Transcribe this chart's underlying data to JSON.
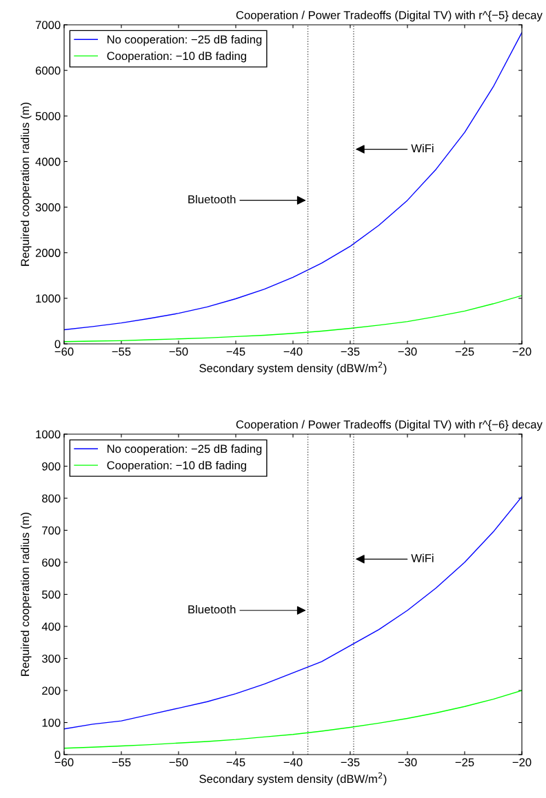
{
  "chart_data": [
    {
      "type": "line",
      "title": "Cooperation / Power Tradeoffs (Digital TV) with r^{−5} decay",
      "xlabel": "Secondary system density (dBW/m$^{2}$)",
      "ylabel": "Required cooperation radius (m)",
      "x": [
        -60,
        -57.5,
        -55,
        -52.5,
        -50,
        -47.5,
        -45,
        -42.5,
        -40,
        -37.5,
        -35,
        -32.5,
        -30,
        -27.5,
        -25,
        -22.5,
        -20
      ],
      "series": [
        {
          "name": "No cooperation: −25 dB fading",
          "color": "#0000ff",
          "values": [
            310,
            380,
            460,
            560,
            670,
            810,
            990,
            1200,
            1460,
            1770,
            2140,
            2600,
            3150,
            3830,
            4640,
            5640,
            6830
          ]
        },
        {
          "name": "Cooperation: −10 dB fading",
          "color": "#00ff00",
          "values": [
            50,
            60,
            70,
            90,
            110,
            130,
            160,
            190,
            230,
            280,
            340,
            410,
            490,
            600,
            720,
            880,
            1060
          ]
        }
      ],
      "xlim": [
        -60,
        -20
      ],
      "ylim": [
        0,
        7000
      ],
      "xticks": [
        {
          "value": -60,
          "label": "−60"
        },
        {
          "value": -55,
          "label": "−55"
        },
        {
          "value": -50,
          "label": "−50"
        },
        {
          "value": -45,
          "label": "−45"
        },
        {
          "value": -40,
          "label": "−40"
        },
        {
          "value": -35,
          "label": "−35"
        },
        {
          "value": -30,
          "label": "−30"
        },
        {
          "value": -25,
          "label": "−25"
        },
        {
          "value": -20,
          "label": "−20"
        }
      ],
      "yticks": [
        0,
        1000,
        2000,
        3000,
        4000,
        5000,
        6000,
        7000
      ],
      "ref_lines": [
        {
          "axis": "x",
          "value": -38.7,
          "color": "#555555",
          "line_style": "dotted"
        },
        {
          "axis": "x",
          "value": -34.7,
          "color": "#555555",
          "line_style": "dotted"
        }
      ],
      "annotations": [
        "Bluetooth",
        "WiFi"
      ],
      "legend": "top left",
      "grid": false,
      "line_style": "solid",
      "marker": "none"
    },
    {
      "type": "line",
      "title": "Cooperation / Power Tradeoffs (Digital TV) with r^{−6} decay",
      "xlabel": "Secondary system density (dBW/m$^{2}$)",
      "ylabel": "Required cooperation radius (m)",
      "x": [
        -60,
        -57.5,
        -55,
        -52.5,
        -50,
        -47.5,
        -45,
        -42.5,
        -40,
        -37.5,
        -35,
        -32.5,
        -30,
        -27.5,
        -25,
        -22.5,
        -20
      ],
      "series": [
        {
          "name": "No cooperation: −25 dB fading",
          "color": "#0000ff",
          "values": [
            80,
            95,
            105,
            125,
            145,
            165,
            190,
            220,
            255,
            290,
            340,
            390,
            450,
            520,
            600,
            695,
            805
          ]
        },
        {
          "name": "Cooperation: −10 dB fading",
          "color": "#00ff00",
          "values": [
            20,
            23,
            27,
            31,
            36,
            41,
            47,
            55,
            63,
            73,
            85,
            98,
            113,
            130,
            150,
            173,
            200
          ]
        }
      ],
      "xlim": [
        -60,
        -20
      ],
      "ylim": [
        0,
        1000
      ],
      "xticks": [
        {
          "value": -60,
          "label": "−60"
        },
        {
          "value": -55,
          "label": "−55"
        },
        {
          "value": -50,
          "label": "−50"
        },
        {
          "value": -45,
          "label": "−45"
        },
        {
          "value": -40,
          "label": "−40"
        },
        {
          "value": -35,
          "label": "−35"
        },
        {
          "value": -30,
          "label": "−30"
        },
        {
          "value": -25,
          "label": "−25"
        },
        {
          "value": -20,
          "label": "−20"
        }
      ],
      "yticks": [
        0,
        100,
        200,
        300,
        400,
        500,
        600,
        700,
        800,
        900,
        1000
      ],
      "ref_lines": [
        {
          "axis": "x",
          "value": -38.7,
          "color": "#555555",
          "line_style": "dotted"
        },
        {
          "axis": "x",
          "value": -34.7,
          "color": "#555555",
          "line_style": "dotted"
        }
      ],
      "annotations": [
        "Bluetooth",
        "WiFi"
      ],
      "legend": "top left",
      "grid": false,
      "line_style": "solid",
      "marker": "none"
    }
  ]
}
